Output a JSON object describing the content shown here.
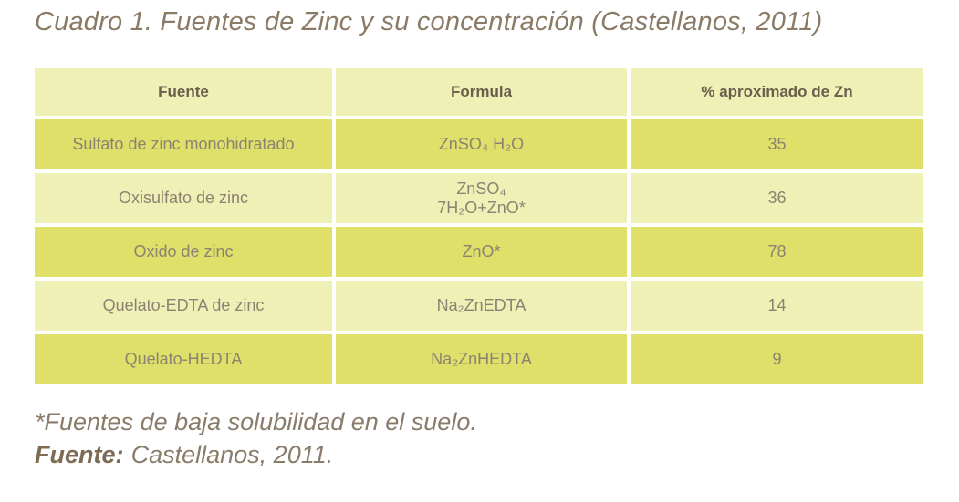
{
  "page": {
    "title": "Cuadro 1. Fuentes de Zinc y su concentración (Castellanos, 2011)"
  },
  "table": {
    "headers": {
      "fuente": "Fuente",
      "formula": "Formula",
      "zn": "% aproximado de Zn"
    },
    "rows": [
      {
        "fuente": "Sulfato de zinc monohidratado",
        "formula": "ZnSO₄ H₂O",
        "zn": "35"
      },
      {
        "fuente": "Oxisulfato de zinc",
        "formula": "ZnSO₄\n7H₂O+ZnO*",
        "zn": "36"
      },
      {
        "fuente": "Oxido de zinc",
        "formula": "ZnO*",
        "zn": "78"
      },
      {
        "fuente": "Quelato-EDTA de zinc",
        "formula": "Na₂ZnEDTA",
        "zn": "14"
      },
      {
        "fuente": "Quelato-HEDTA",
        "formula": "Na₂ZnHEDTA",
        "zn": "9"
      }
    ]
  },
  "footnotes": {
    "solubility_note": "*Fuentes de baja solubilidad en el suelo.",
    "source_label": "Fuente:",
    "source_value": "Castellanos, 2011."
  },
  "colors": {
    "row_dark": "#dee069",
    "row_light": "#eef0b6",
    "header_text": "#6b5e4b",
    "cell_text": "#8c8272",
    "title_text": "#8a7a66",
    "source_label_text": "#7d6b54",
    "background": "#ffffff"
  }
}
